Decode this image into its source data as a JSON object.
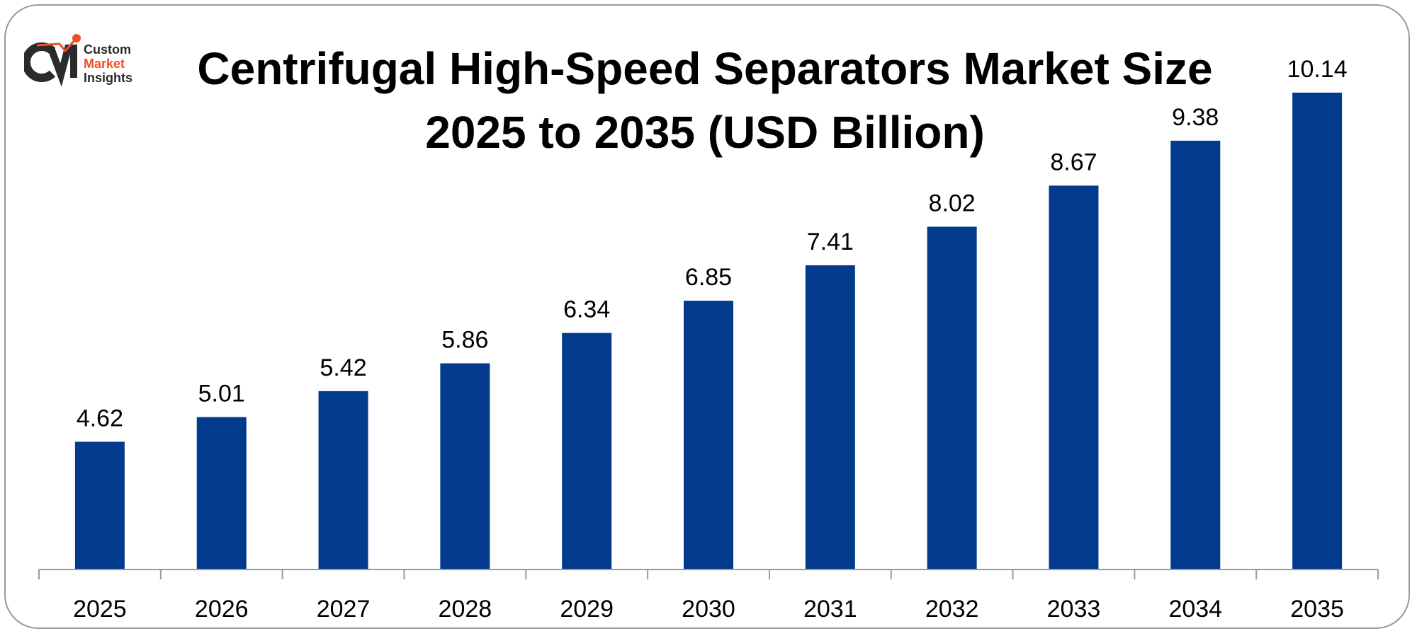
{
  "logo": {
    "line1": "Custom",
    "line2": "Market",
    "line3": "Insights",
    "mark": "CMI",
    "colors": {
      "dark": "#2b2b2b",
      "accent": "#f04e23"
    }
  },
  "chart_data": {
    "type": "bar",
    "title": "Centrifugal High-Speed Separators Market Size 2025 to 2035 (USD Billion)",
    "title_lines": [
      "Centrifugal High-Speed Separators Market Size",
      "2025 to 2035 (USD Billion)"
    ],
    "categories": [
      "2025",
      "2026",
      "2027",
      "2028",
      "2029",
      "2030",
      "2031",
      "2032",
      "2033",
      "2034",
      "2035"
    ],
    "values": [
      4.62,
      5.01,
      5.42,
      5.86,
      6.34,
      6.85,
      7.41,
      8.02,
      8.67,
      9.38,
      10.14
    ],
    "data_labels": [
      "4.62",
      "5.01",
      "5.42",
      "5.86",
      "6.34",
      "6.85",
      "7.41",
      "8.02",
      "8.67",
      "9.38",
      "10.14"
    ],
    "xlabel": "",
    "ylabel": "",
    "ylim": [
      2.6,
      10.9
    ],
    "grid": false,
    "legend": "none",
    "bar_color": "#023b8e"
  }
}
